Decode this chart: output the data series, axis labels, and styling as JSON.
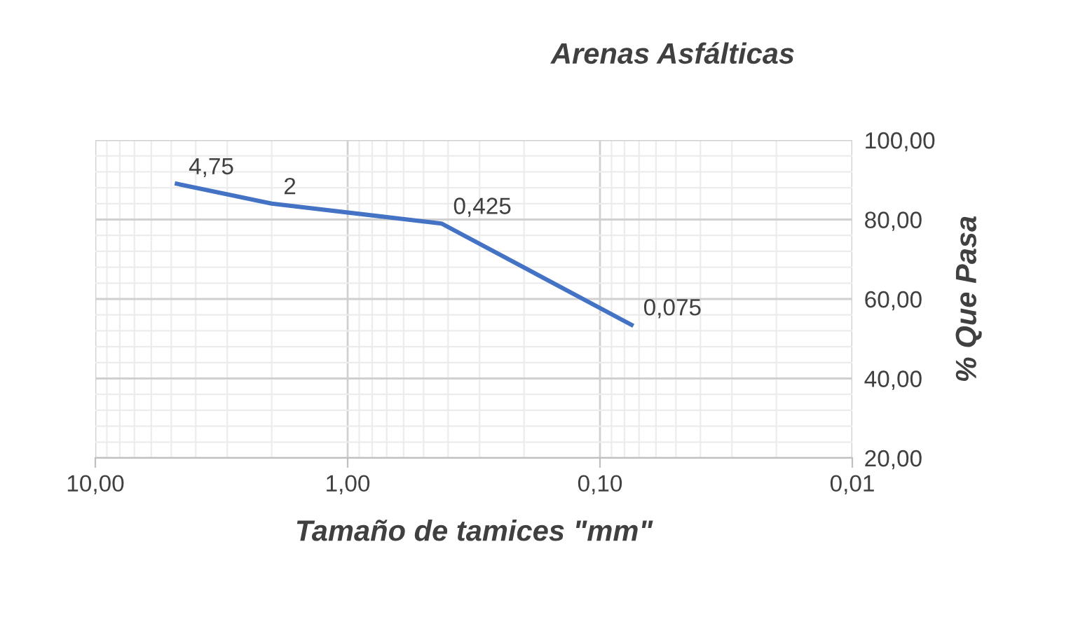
{
  "chart_data": {
    "type": "line",
    "title": "Arenas Asfálticas",
    "xlabel": "Tamaño de tamices \"mm\"",
    "ylabel": "% Que Pasa",
    "x": [
      4.75,
      2,
      0.425,
      0.075
    ],
    "series": [
      {
        "color": "#4472c4",
        "values": [
          89,
          84,
          79,
          53.5
        ]
      }
    ],
    "annotations": [
      {
        "text": "4,75",
        "x": 4.75,
        "y": 89
      },
      {
        "text": "2",
        "x": 2,
        "y": 84
      },
      {
        "text": "0,425",
        "x": 0.425,
        "y": 79
      },
      {
        "text": "0,075",
        "x": 0.075,
        "y": 53.5
      }
    ],
    "log": "x",
    "xlim": [
      10,
      0.01
    ],
    "ylim": [
      20,
      100
    ],
    "xticks": [
      {
        "value": 10,
        "label": "10,00"
      },
      {
        "value": 1,
        "label": "1,00"
      },
      {
        "value": 0.1,
        "label": "0,10"
      },
      {
        "value": 0.01,
        "label": "0,01"
      }
    ],
    "yticks": [
      {
        "value": 20,
        "label": "20,00"
      },
      {
        "value": 40,
        "label": "40,00"
      },
      {
        "value": 60,
        "label": "60,00"
      },
      {
        "value": 80,
        "label": "80,00"
      },
      {
        "value": 100,
        "label": "100,00"
      }
    ],
    "grid": true,
    "marker": "none",
    "line_style": "solid",
    "legend": false
  }
}
